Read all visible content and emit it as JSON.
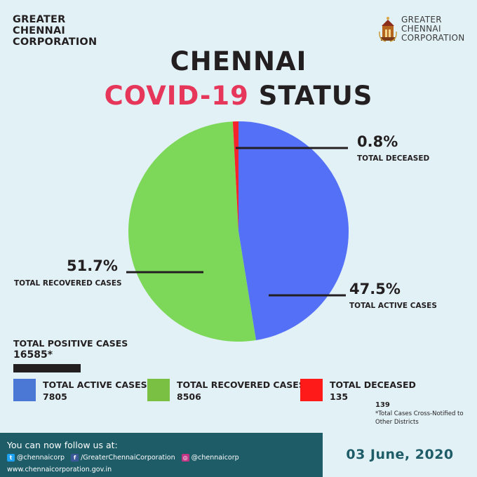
{
  "brand": {
    "left": [
      "GREATER",
      "CHENNAI",
      "CORPORATION"
    ],
    "right": [
      "GREATER",
      "CHENNAI",
      "CORPORATION"
    ]
  },
  "title": {
    "line1": "CHENNAI",
    "line2_red": "COVID-19",
    "line2_rest": "STATUS"
  },
  "chart_data": {
    "type": "pie",
    "slices": [
      {
        "name": "TOTAL ACTIVE CASES",
        "percent_label": "47.5%",
        "value": 7805,
        "color": "#5370f7"
      },
      {
        "name": "TOTAL RECOVERED CASES",
        "percent_label": "51.7%",
        "value": 8506,
        "color": "#7dd85a"
      },
      {
        "name": "TOTAL DECEASED",
        "percent_label": "0.8%",
        "value": 135,
        "color": "#f5232c"
      }
    ]
  },
  "labels": {
    "deceased": {
      "pct": "0.8%",
      "name": "TOTAL DECEASED"
    },
    "recovered": {
      "pct": "51.7%",
      "name": "TOTAL RECOVERED CASES"
    },
    "active": {
      "pct": "47.5%",
      "name": "TOTAL ACTIVE CASES"
    }
  },
  "total_positive": {
    "label": "TOTAL POSITIVE CASES",
    "value": "16585*"
  },
  "legend": [
    {
      "name": "TOTAL ACTIVE CASES",
      "value": "7805",
      "color": "#4a78d4"
    },
    {
      "name": "TOTAL RECOVERED CASES",
      "value": "8506",
      "color": "#7ac143"
    },
    {
      "name": "TOTAL DECEASED",
      "value": "135",
      "color": "#ff1a1a"
    }
  ],
  "note": {
    "number": "139",
    "text1": "*Total Cases Cross-Notified to",
    "text2": "Other Districts"
  },
  "footer": {
    "follow": "You can now follow us at:",
    "twitter": "@chennaicorp",
    "facebook": "/GreaterChennaiCorporation",
    "instagram": "@chennaicorp",
    "website": "www.chennaicorporation.gov.in",
    "date": "03 June, 2020",
    "icons": {
      "twitter": "twitter-icon",
      "facebook": "facebook-icon",
      "instagram": "instagram-icon"
    }
  }
}
